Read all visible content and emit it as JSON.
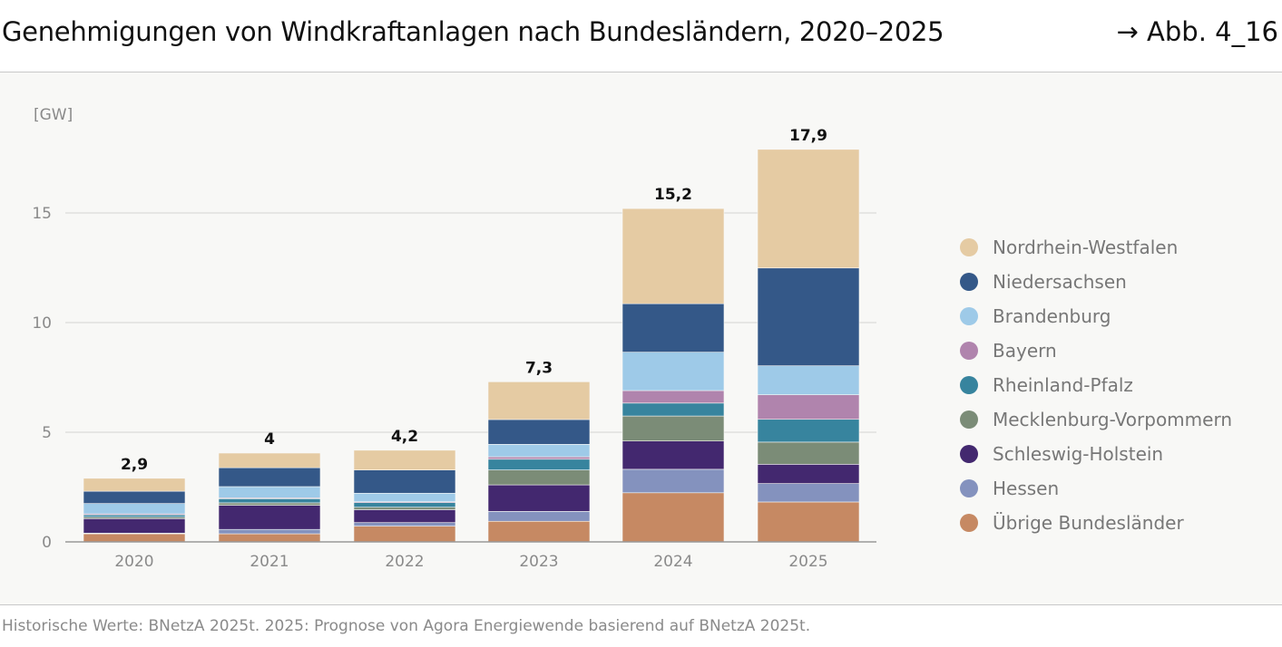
{
  "header": {
    "title": "Genehmigungen von Windkraftanlagen nach Bundesländern, 2020–2025",
    "ref": "→ Abb. 4_16"
  },
  "footer": {
    "source": "Historische Werte: BNetzA 2025t. 2025: Prognose von Agora Energiewende basierend auf BNetzA 2025t."
  },
  "chart_data": {
    "type": "bar",
    "stacked": true,
    "ylabel": "[GW]",
    "ylim": [
      0,
      18
    ],
    "yticks": [
      "0",
      "5",
      "10",
      "15"
    ],
    "grid": true,
    "legend_position": "right",
    "categories": [
      "2020",
      "2021",
      "2022",
      "2023",
      "2024",
      "2025"
    ],
    "totals": [
      "2,9",
      "4",
      "4,2",
      "7,3",
      "15,2",
      "17,9"
    ],
    "series": [
      {
        "name": "Übrige Bundesländer",
        "color": "#c68963",
        "values": [
          0.37,
          0.37,
          0.72,
          0.94,
          2.24,
          1.82
        ]
      },
      {
        "name": "Hessen",
        "color": "#8492be",
        "values": [
          0.03,
          0.2,
          0.16,
          0.45,
          1.07,
          0.84
        ]
      },
      {
        "name": "Schleswig-Holstein",
        "color": "#43286f",
        "values": [
          0.66,
          1.1,
          0.59,
          1.21,
          1.29,
          0.88
        ]
      },
      {
        "name": "Mecklenburg-Vorpommern",
        "color": "#7b8c77",
        "values": [
          0.07,
          0.11,
          0.11,
          0.68,
          1.14,
          1.01
        ]
      },
      {
        "name": "Rheinland-Pfalz",
        "color": "#37849e",
        "values": [
          0.1,
          0.19,
          0.21,
          0.49,
          0.59,
          1.04
        ]
      },
      {
        "name": "Bayern",
        "color": "#b084ad",
        "values": [
          0.05,
          0.04,
          0.04,
          0.11,
          0.57,
          1.12
        ]
      },
      {
        "name": "Brandenburg",
        "color": "#9ecae8",
        "values": [
          0.47,
          0.51,
          0.39,
          0.57,
          1.75,
          1.32
        ]
      },
      {
        "name": "Niedersachsen",
        "color": "#345888",
        "values": [
          0.56,
          0.86,
          1.06,
          1.13,
          2.21,
          4.46
        ]
      },
      {
        "name": "Nordrhein-Westfalen",
        "color": "#e5cba3",
        "values": [
          0.59,
          0.67,
          0.9,
          1.72,
          4.34,
          5.41
        ]
      }
    ]
  }
}
